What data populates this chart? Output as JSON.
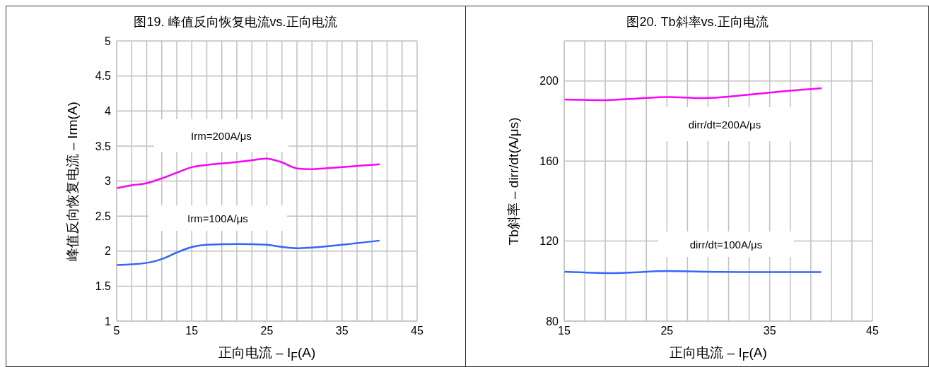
{
  "chart_data": [
    {
      "type": "line",
      "title": "图19. 峰值反向恢复电流vs.正向电流",
      "xlabel": "正向电流 – I$_{F}$(A)",
      "ylabel": "峰值反向恢复电流 – Irm(A)",
      "xlim": [
        5,
        45
      ],
      "xticks": [
        5,
        {
          "value": 7,
          "label": null
        },
        {
          "value": 9,
          "label": null
        },
        {
          "value": 11,
          "label": null
        },
        {
          "value": 13,
          "label": null
        },
        15,
        {
          "value": 17,
          "label": null
        },
        {
          "value": 19,
          "label": null
        },
        {
          "value": 21,
          "label": null
        },
        {
          "value": 23,
          "label": null
        },
        25,
        {
          "value": 27,
          "label": null
        },
        {
          "value": 29,
          "label": null
        },
        {
          "value": 31,
          "label": null
        },
        {
          "value": 33,
          "label": null
        },
        35,
        {
          "value": 37,
          "label": null
        },
        {
          "value": 39,
          "label": null
        },
        {
          "value": 41,
          "label": null
        },
        {
          "value": 43,
          "label": null
        },
        45
      ],
      "ylim": [
        1,
        5
      ],
      "yticks": [
        1,
        1.5,
        2,
        2.5,
        3,
        3.5,
        4,
        4.5,
        5
      ],
      "grid": true,
      "series": [
        {
          "name": "Irm=200A/μs",
          "color": "#ff00ff",
          "x": [
            5,
            7,
            9,
            10.8,
            13,
            15.1,
            17,
            19.9,
            22.5,
            24.9,
            26.9,
            29,
            30.9,
            35,
            40
          ],
          "values": [
            2.9,
            2.94,
            2.97,
            3.03,
            3.12,
            3.2,
            3.23,
            3.26,
            3.29,
            3.32,
            3.27,
            3.18,
            3.17,
            3.2,
            3.24
          ]
        },
        {
          "name": "Irm=100A/μs",
          "color": "#3366ff",
          "x": [
            5,
            7,
            9.9,
            11.1,
            13,
            15.1,
            17.1,
            21.2,
            24.9,
            26.9,
            29,
            31,
            35,
            40
          ],
          "values": [
            1.8,
            1.81,
            1.85,
            1.89,
            1.98,
            2.06,
            2.09,
            2.1,
            2.09,
            2.06,
            2.04,
            2.05,
            2.09,
            2.15
          ]
        }
      ]
    },
    {
      "type": "line",
      "title": "图20. Tb斜率vs.正向电流",
      "xlabel": "正向电流 – I$_{F}$(A)",
      "ylabel": "Tb斜率 – dirr/dt(A/μs)",
      "xlim": [
        15,
        45
      ],
      "xticks": [
        15,
        {
          "value": 17,
          "label": null
        },
        {
          "value": 19,
          "label": null
        },
        {
          "value": 21,
          "label": null
        },
        {
          "value": 23,
          "label": null
        },
        25,
        {
          "value": 27,
          "label": null
        },
        {
          "value": 29,
          "label": null
        },
        {
          "value": 31,
          "label": null
        },
        {
          "value": 33,
          "label": null
        },
        35,
        {
          "value": 37,
          "label": null
        },
        {
          "value": 39,
          "label": null
        },
        {
          "value": 41,
          "label": null
        },
        {
          "value": 43,
          "label": null
        },
        45
      ],
      "ylim": [
        80,
        220
      ],
      "yticks": [
        80,
        120,
        160,
        200,
        {
          "value": 220,
          "label": null
        }
      ],
      "grid": true,
      "series": [
        {
          "name": "dirr/dt=200A/μs",
          "color": "#ff00ff",
          "x": [
            15,
            19,
            22,
            25.1,
            28.4,
            32.7,
            36,
            40
          ],
          "values": [
            190.7,
            190.4,
            191.2,
            192,
            191.4,
            193,
            194.7,
            196.4
          ]
        },
        {
          "name": "dirr/dt=100A/μs",
          "color": "#3366ff",
          "x": [
            15,
            19.9,
            25.1,
            30.2,
            35,
            40
          ],
          "values": [
            104.7,
            104,
            105,
            104.6,
            104.5,
            104.5
          ]
        }
      ]
    }
  ]
}
